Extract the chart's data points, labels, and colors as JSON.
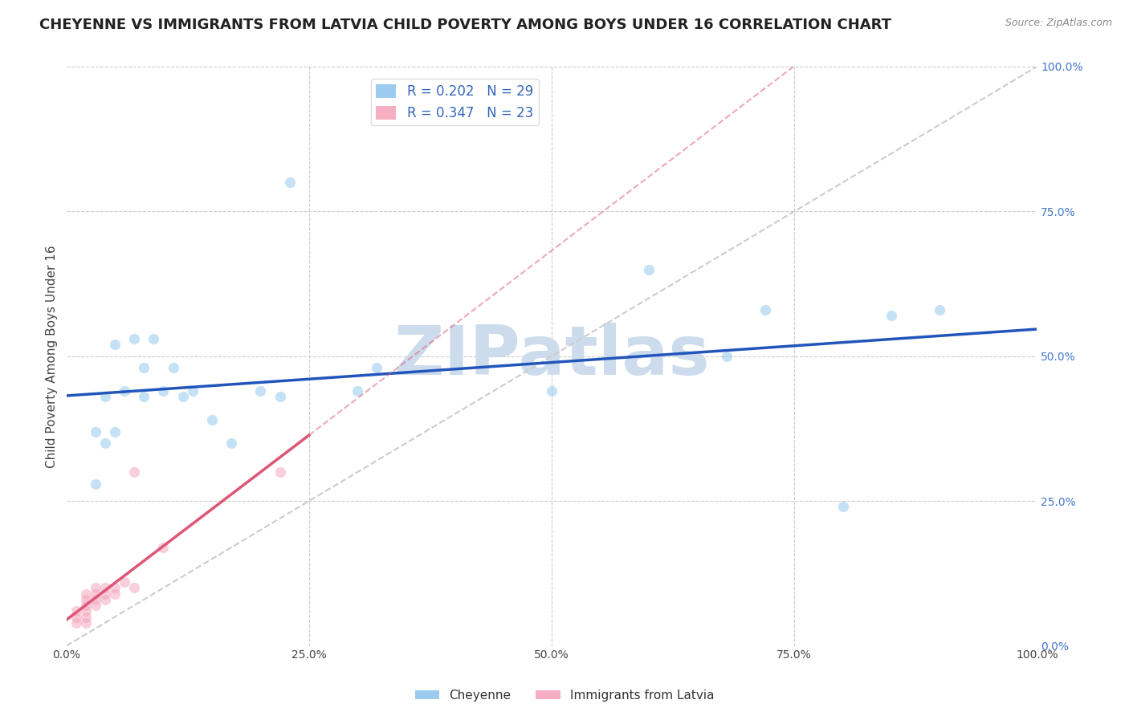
{
  "title": "CHEYENNE VS IMMIGRANTS FROM LATVIA CHILD POVERTY AMONG BOYS UNDER 16 CORRELATION CHART",
  "source": "Source: ZipAtlas.com",
  "ylabel": "Child Poverty Among Boys Under 16",
  "cheyenne_x": [
    0.03,
    0.04,
    0.05,
    0.06,
    0.07,
    0.08,
    0.08,
    0.09,
    0.1,
    0.11,
    0.12,
    0.13,
    0.15,
    0.17,
    0.2,
    0.22,
    0.23,
    0.3,
    0.32,
    0.5,
    0.6,
    0.68,
    0.72,
    0.8,
    0.85,
    0.9,
    0.03,
    0.04,
    0.05
  ],
  "cheyenne_y": [
    0.37,
    0.43,
    0.52,
    0.44,
    0.53,
    0.43,
    0.48,
    0.53,
    0.44,
    0.48,
    0.43,
    0.44,
    0.39,
    0.35,
    0.44,
    0.43,
    0.8,
    0.44,
    0.48,
    0.44,
    0.65,
    0.5,
    0.58,
    0.24,
    0.57,
    0.58,
    0.28,
    0.35,
    0.37
  ],
  "latvia_x": [
    0.01,
    0.01,
    0.01,
    0.02,
    0.02,
    0.02,
    0.02,
    0.02,
    0.02,
    0.03,
    0.03,
    0.03,
    0.03,
    0.04,
    0.04,
    0.04,
    0.05,
    0.05,
    0.06,
    0.07,
    0.07,
    0.1,
    0.22
  ],
  "latvia_y": [
    0.04,
    0.05,
    0.06,
    0.04,
    0.05,
    0.06,
    0.07,
    0.08,
    0.09,
    0.07,
    0.08,
    0.09,
    0.1,
    0.08,
    0.09,
    0.1,
    0.09,
    0.1,
    0.11,
    0.1,
    0.3,
    0.17,
    0.3
  ],
  "cheyenne_color": "#8ac4ee",
  "latvia_color": "#f4a0b8",
  "cheyenne_R": "0.202",
  "cheyenne_N": "29",
  "latvia_R": "0.347",
  "latvia_N": "23",
  "legend_label_cheyenne": "Cheyenne",
  "legend_label_latvia": "Immigrants from Latvia",
  "xlim": [
    0.0,
    1.0
  ],
  "ylim": [
    0.0,
    1.0
  ],
  "ytick_labels_right": [
    "100.0%",
    "75.0%",
    "50.0%",
    "25.0%",
    "0.0%"
  ],
  "ytick_values": [
    1.0,
    0.75,
    0.5,
    0.25,
    0.0
  ],
  "xtick_labels": [
    "0.0%",
    "25.0%",
    "50.0%",
    "75.0%",
    "100.0%"
  ],
  "xtick_values": [
    0.0,
    0.25,
    0.5,
    0.75,
    1.0
  ],
  "watermark": "ZIPatlas",
  "watermark_color": "#ccdcec",
  "grid_color": "#cccccc",
  "title_fontsize": 13,
  "label_fontsize": 11,
  "tick_fontsize": 10,
  "marker_size": 90,
  "marker_alpha": 0.5,
  "blue_line_color": "#2255bb",
  "pink_line_color": "#dd5577",
  "diag_color": "#cccccc",
  "line_width": 2.5
}
